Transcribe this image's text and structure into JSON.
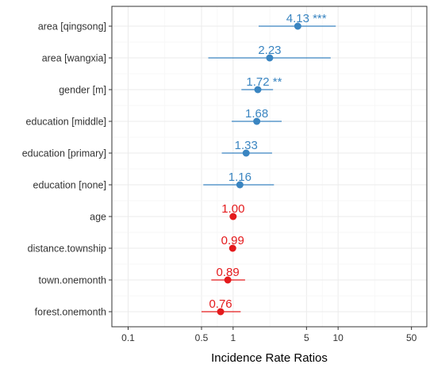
{
  "chart_data": {
    "type": "scatter",
    "subtype": "forest-plot",
    "title": "",
    "xlabel": "Incidence Rate Ratios",
    "ylabel": "",
    "xscale": "log",
    "xlim": [
      0.07,
      70
    ],
    "xticks": [
      0.1,
      0.5,
      1,
      5,
      10,
      50
    ],
    "xtick_labels": [
      "0.1",
      "0.5",
      "1",
      "5",
      "10",
      "50"
    ],
    "grid": true,
    "colors": {
      "positive": "#3a85c1",
      "negative": "#e41a1c"
    },
    "rows": [
      {
        "term": "area [qingsong]",
        "estimate": 4.13,
        "ci": [
          1.75,
          9.5
        ],
        "label": "4.13 ***",
        "direction": "positive"
      },
      {
        "term": "area [wangxia]",
        "estimate": 2.23,
        "ci": [
          0.58,
          8.5
        ],
        "label": "2.23",
        "direction": "positive"
      },
      {
        "term": "gender [m]",
        "estimate": 1.72,
        "ci": [
          1.2,
          2.4
        ],
        "label": "1.72 **",
        "direction": "positive"
      },
      {
        "term": "education [middle]",
        "estimate": 1.68,
        "ci": [
          0.97,
          2.9
        ],
        "label": "1.68",
        "direction": "positive"
      },
      {
        "term": "education [primary]",
        "estimate": 1.33,
        "ci": [
          0.78,
          2.35
        ],
        "label": "1.33",
        "direction": "positive"
      },
      {
        "term": "education [none]",
        "estimate": 1.16,
        "ci": [
          0.52,
          2.45
        ],
        "label": "1.16",
        "direction": "positive"
      },
      {
        "term": "age",
        "estimate": 1.0,
        "ci": [
          0.97,
          1.03
        ],
        "label": "1.00",
        "direction": "negative"
      },
      {
        "term": "distance.township",
        "estimate": 0.99,
        "ci": [
          0.94,
          1.04
        ],
        "label": "0.99",
        "direction": "negative"
      },
      {
        "term": "town.onemonth",
        "estimate": 0.89,
        "ci": [
          0.62,
          1.3
        ],
        "label": "0.89",
        "direction": "negative"
      },
      {
        "term": "forest.onemonth",
        "estimate": 0.76,
        "ci": [
          0.5,
          1.18
        ],
        "label": "0.76",
        "direction": "negative"
      }
    ]
  }
}
